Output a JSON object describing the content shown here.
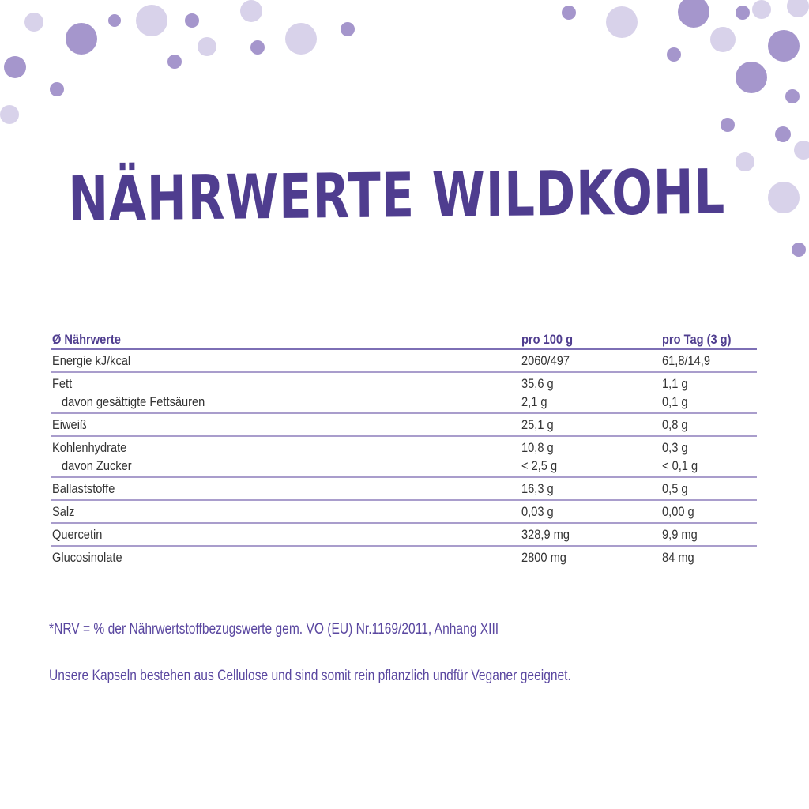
{
  "title": "NÄHRWERTE WILDKOHL",
  "table": {
    "headers": [
      "Ø Nährwerte",
      "pro 100 g",
      "pro Tag (3 g)"
    ],
    "groups": [
      [
        [
          "Energie kJ/kcal",
          "2060/497",
          "61,8/14,9"
        ]
      ],
      [
        [
          "Fett",
          "35,6 g",
          "1,1 g"
        ],
        [
          "davon gesättigte Fettsäuren",
          "2,1 g",
          "0,1 g"
        ]
      ],
      [
        [
          "Eiweiß",
          "25,1 g",
          "0,8 g"
        ]
      ],
      [
        [
          "Kohlenhydrate",
          "10,8 g",
          "0,3 g"
        ],
        [
          "davon Zucker",
          "< 2,5 g",
          "< 0,1 g"
        ]
      ],
      [
        [
          "Ballaststoffe",
          "16,3 g",
          "0,5 g"
        ]
      ],
      [
        [
          "Salz",
          "0,03 g",
          "0,00 g"
        ]
      ],
      [
        [
          "Quercetin",
          "328,9 mg",
          "9,9 mg"
        ]
      ],
      [
        [
          "Glucosinolate",
          "2800 mg",
          "84 mg"
        ]
      ]
    ]
  },
  "footnote": "*NRV = % der Nährwertstoffbezugswerte gem. VO (EU) Nr.1169/2011, Anhang XIII",
  "note": "Unsere Kapseln bestehen aus Cellulose und sind somit rein pflanzlich undfür Veganer geeignet.",
  "colors": {
    "accent": "#4f3d8f",
    "dot_dark": "#a596cc",
    "dot_light": "#d8d2ea"
  }
}
